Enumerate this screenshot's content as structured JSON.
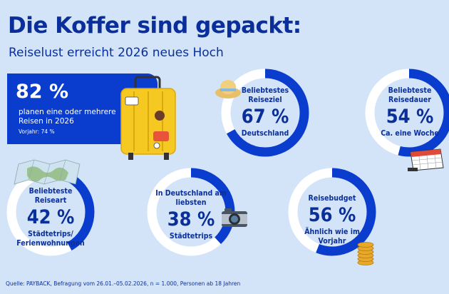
{
  "header": {
    "title": "Die Koffer sind gepackt:",
    "subtitle": "Reiselust erreicht 2026 neues Hoch"
  },
  "hero": {
    "value": "82 %",
    "text": "planen eine oder mehrere Reisen in 2026",
    "note": "Vorjahr: 74 %"
  },
  "colors": {
    "accent": "#0a3ccd",
    "ring_track": "#ffffff",
    "background": "#d4e4f8",
    "text": "#0a2f9a"
  },
  "chart_data": [
    {
      "type": "pie",
      "label": "Beliebtestes Reiseziel",
      "value": 67,
      "value_label": "67 %",
      "sub": "Deutschland"
    },
    {
      "type": "pie",
      "label": "Beliebteste Reisedauer",
      "value": 54,
      "value_label": "54 %",
      "sub": "Ca. eine Woche"
    },
    {
      "type": "pie",
      "label": "Beliebteste Reiseart",
      "value": 42,
      "value_label": "42 %",
      "sub": "Städtetrips/ Ferienwohnungen"
    },
    {
      "type": "pie",
      "label": "In Deutschland am liebsten",
      "value": 38,
      "value_label": "38 %",
      "sub": "Städtetrips"
    },
    {
      "type": "pie",
      "label": "Reisebudget",
      "value": 56,
      "value_label": "56 %",
      "sub": "Ähnlich wie im Vorjahr"
    }
  ],
  "footer": {
    "source": "Quelle: PAYBACK, Befragung vom 26.01.–05.02.2026, n = 1.000, Personen ab 18 Jahren"
  },
  "illustrations": [
    "suitcase-icon",
    "sun-hat-icon",
    "calendar-icon",
    "map-icon",
    "camera-icon",
    "coins-icon"
  ]
}
